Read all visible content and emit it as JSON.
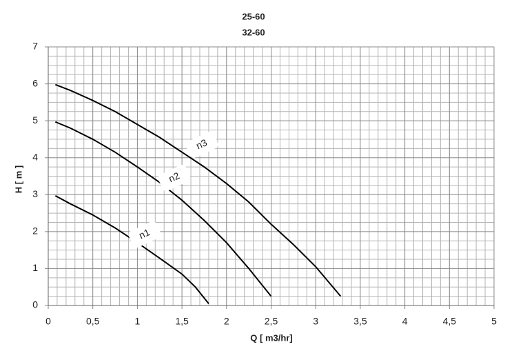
{
  "chart_data": {
    "type": "line",
    "title": "25-60",
    "subtitle": "32-60",
    "x_label": "Q [ m3/hr]",
    "y_label": "H [ m ]",
    "xlim": [
      0,
      5
    ],
    "xticks": [
      0,
      {
        "value": 0.5,
        "label": "0,5"
      },
      1,
      {
        "value": 1.5,
        "label": "1,5"
      },
      2,
      {
        "value": 2.5,
        "label": "2,5"
      },
      3,
      {
        "value": 3.5,
        "label": "3,5"
      },
      4,
      {
        "value": 4.5,
        "label": "4,5"
      },
      5
    ],
    "ylim": [
      0,
      7
    ],
    "yticks": [
      0,
      1,
      2,
      3,
      4,
      5,
      6,
      7
    ],
    "grid": true,
    "series": [
      {
        "name": "n1",
        "color": "#000000",
        "x": [
          0.08,
          0.25,
          0.5,
          0.75,
          1,
          1.25,
          1.5,
          1.65,
          1.8
        ],
        "values": [
          2.97,
          2.75,
          2.45,
          2.1,
          1.7,
          1.28,
          0.85,
          0.5,
          0.05
        ]
      },
      {
        "name": "n2",
        "color": "#000000",
        "x": [
          0.08,
          0.25,
          0.5,
          0.75,
          1,
          1.25,
          1.5,
          1.75,
          2,
          2.25,
          2.5
        ],
        "values": [
          4.97,
          4.8,
          4.5,
          4.15,
          3.75,
          3.33,
          2.85,
          2.3,
          1.7,
          1.0,
          0.25
        ]
      },
      {
        "name": "n3",
        "color": "#000000",
        "x": [
          0.08,
          0.25,
          0.5,
          0.75,
          1,
          1.25,
          1.5,
          1.75,
          2,
          2.25,
          2.5,
          2.75,
          3,
          3.28
        ],
        "values": [
          5.98,
          5.82,
          5.55,
          5.25,
          4.9,
          4.55,
          4.15,
          3.75,
          3.3,
          2.8,
          2.2,
          1.65,
          1.05,
          0.25
        ]
      }
    ]
  }
}
